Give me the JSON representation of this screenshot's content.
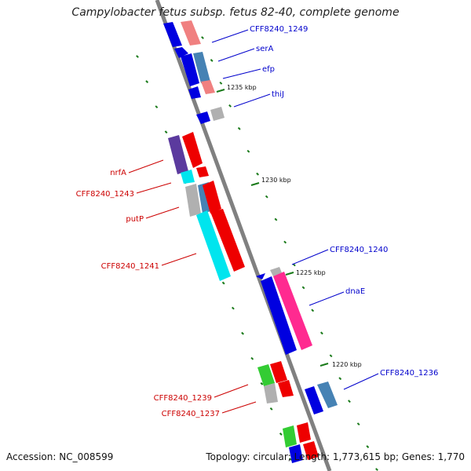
{
  "title": "Campylobacter fetus subsp. fetus 82-40, complete genome",
  "accession_label": "Accession: NC_008599",
  "summary_label": "Topology: circular; Length: 1,773,615 bp; Genes: 1,770",
  "colors": {
    "backbone": "#808080",
    "forward_label": "#0000cc",
    "reverse_label": "#cc0000",
    "ring_tick": "#1a7a1a",
    "blue_gene": "#0000e0",
    "red_gene": "#ee0000",
    "cyan_gene": "#00e5ee",
    "pink_gene": "#ff2a90",
    "purple_gene": "#5b3a9e",
    "salmon_gene": "#f08080",
    "steel_gene": "#4682b4",
    "gray_gene": "#b0b0b0",
    "green_gene": "#33cc33"
  },
  "scale_ticks": [
    "1235 kbp",
    "1230 kbp",
    "1225 kbp",
    "1220 kbp"
  ],
  "forward_labels": [
    "CFF8240_1249",
    "serA",
    "efp",
    "thiJ",
    "CFF8240_1240",
    "dnaE",
    "CFF8240_1236"
  ],
  "reverse_labels": [
    "nrfA",
    "CFF8240_1243",
    "putP",
    "CFF8240_1241",
    "CFF8240_1239",
    "CFF8240_1237"
  ]
}
